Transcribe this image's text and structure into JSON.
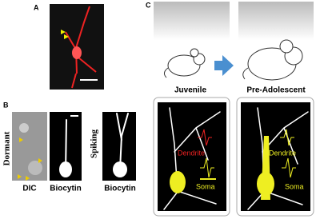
{
  "panels": {
    "a": {
      "label": "A"
    },
    "b": {
      "label": "B",
      "rows": [
        "Dormant",
        "Spiking"
      ],
      "captions": [
        "DIC",
        "Biocytin",
        "Biocytin"
      ]
    },
    "c": {
      "label": "C",
      "stages": [
        "Juvenile",
        "Pre-Adolescent"
      ],
      "traces": [
        {
          "dendrite": "Dendrite",
          "soma": "Soma"
        },
        {
          "dendrite": "Dendrite",
          "soma": "Soma"
        }
      ]
    }
  }
}
